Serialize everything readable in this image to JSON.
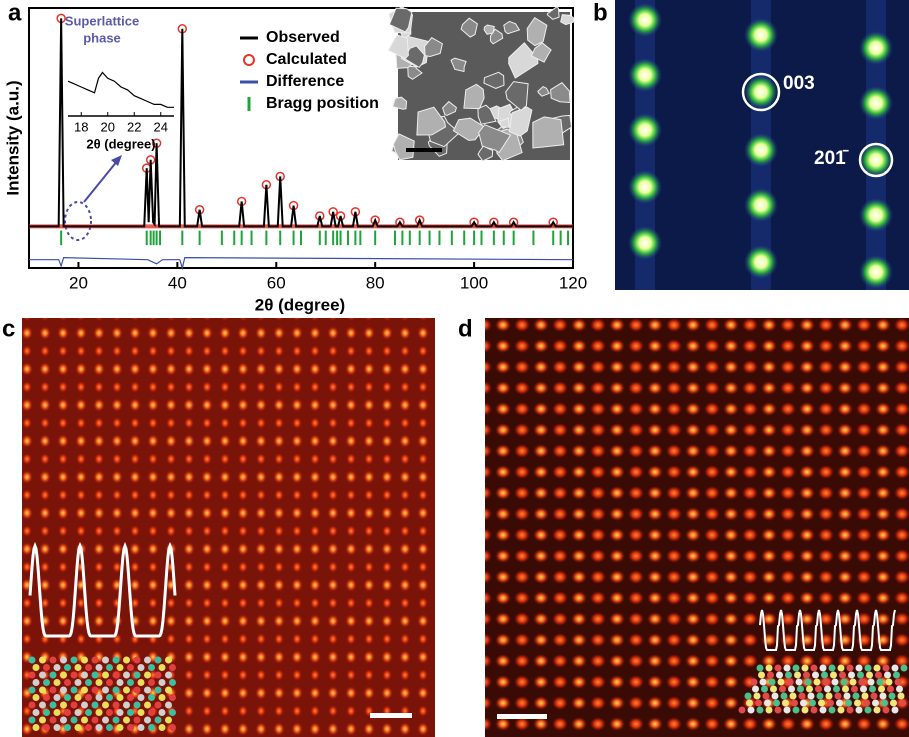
{
  "chart_data": {
    "type": "line",
    "panel_label": "a",
    "xlabel": "2θ (degree)",
    "ylabel": "Intensity (a.u.)",
    "xlim": [
      10,
      120
    ],
    "xticks": [
      20,
      40,
      60,
      80,
      100,
      120
    ],
    "ylim": [
      -20,
      105
    ],
    "series": [
      {
        "name": "Observed",
        "color": "#000000",
        "x": [
          10,
          16,
          16.5,
          17,
          33.3,
          33.8,
          34.2,
          34.6,
          35.1,
          35.4,
          35.8,
          36.3,
          40.5,
          41,
          41.5,
          44,
          44.5,
          45,
          52.5,
          53,
          53.5,
          57.5,
          58,
          58.5,
          60.3,
          60.8,
          61.3,
          63,
          63.5,
          64,
          68.3,
          68.8,
          69.3,
          71,
          71.5,
          72,
          72.5,
          73,
          73.5,
          75.5,
          76,
          76.5,
          79.5,
          80,
          80.5,
          84.5,
          85,
          85.5,
          88.5,
          89,
          89.5,
          99.5,
          100,
          100.5,
          103.5,
          104,
          104.5,
          107.5,
          108,
          108.5,
          115.5,
          116,
          116.5,
          120
        ],
        "values": [
          0,
          0,
          100,
          0,
          0,
          28,
          2,
          32,
          2,
          1,
          40,
          0,
          0,
          95,
          0,
          0,
          8,
          0,
          0,
          12,
          0,
          0,
          20,
          0,
          0,
          24,
          0,
          0,
          10,
          0,
          0,
          5,
          0,
          0,
          7,
          0,
          0,
          5,
          0,
          0,
          7,
          0,
          0,
          3,
          0,
          0,
          2,
          0,
          0,
          3,
          0,
          0,
          2,
          0,
          0,
          2,
          0,
          0,
          2,
          0,
          0,
          2,
          0,
          0
        ]
      },
      {
        "name": "Calculated",
        "color": "#e8322a",
        "x": [
          16.5,
          33.8,
          34.6,
          35.8,
          41,
          44.5,
          53,
          58,
          60.8,
          63.5,
          68.8,
          71.5,
          73,
          76,
          80,
          85,
          89,
          100,
          104,
          108,
          116
        ],
        "values": [
          100,
          28,
          32,
          40,
          95,
          8,
          12,
          20,
          24,
          10,
          5,
          7,
          5,
          7,
          3,
          2,
          3,
          2,
          2,
          2,
          2
        ]
      },
      {
        "name": "Difference",
        "color": "#3a4fa8",
        "x": [
          10,
          16,
          16.5,
          17,
          34,
          35.8,
          37,
          40.5,
          41,
          41.5,
          120
        ],
        "values": [
          -16,
          -16,
          -19,
          -15,
          -16,
          -18,
          -16,
          -16,
          -20,
          -15,
          -16
        ]
      },
      {
        "name": "Bragg position",
        "color": "#1fa33a",
        "x": [
          16.5,
          33.8,
          34.6,
          35.2,
          35.8,
          36.5,
          41,
          44.5,
          49,
          51.5,
          53,
          55,
          58,
          60.8,
          63.5,
          65,
          68.8,
          70,
          71.5,
          72.3,
          73,
          74.5,
          76,
          77,
          80,
          84,
          85.5,
          87,
          89,
          91,
          93,
          95.5,
          98,
          100,
          101.5,
          104,
          106,
          108,
          112,
          116,
          117.5,
          119
        ]
      }
    ],
    "inset": {
      "title": [
        "Superlattice",
        "phase"
      ],
      "xlabel": "2θ (degree)",
      "xlim": [
        17,
        25
      ],
      "xticks": [
        18,
        20,
        22,
        24
      ],
      "ylim": [
        0,
        10
      ],
      "x": [
        17,
        17.5,
        18,
        18.5,
        19,
        19.3,
        19.6,
        20,
        20.5,
        21,
        21.5,
        22,
        22.5,
        23,
        23.5,
        24,
        24.5,
        25
      ],
      "values": [
        6,
        5.5,
        5,
        4.5,
        4,
        6.5,
        7.5,
        6.5,
        6,
        5,
        4.5,
        3.5,
        3,
        2.5,
        2,
        2,
        1.5,
        1.5
      ]
    }
  },
  "panels": {
    "b": {
      "label": "b",
      "spot_labels": [
        "003",
        "201̄"
      ]
    },
    "c": {
      "label": "c"
    },
    "d": {
      "label": "d"
    }
  }
}
